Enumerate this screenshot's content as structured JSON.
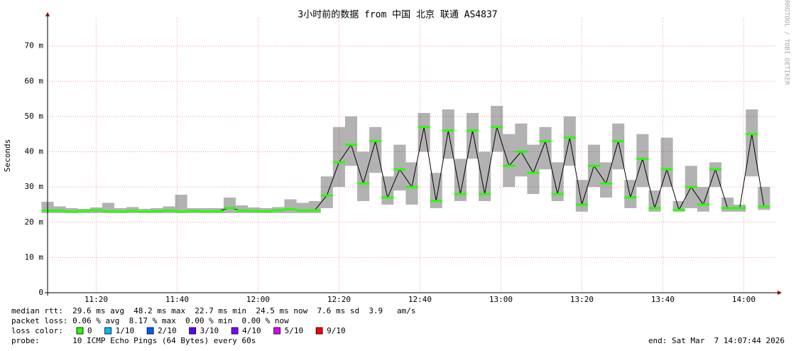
{
  "chart_data": {
    "type": "smoke",
    "title": "3小时前的数据 from 中国 北京 联通 AS4837",
    "y_label": "Seconds",
    "watermark": "RRDTOOL / TOBI OETIKER",
    "ylim": [
      0,
      0.078
    ],
    "yticks": [
      0,
      {
        "value": 0.01,
        "label": "10 m"
      },
      {
        "value": 0.02,
        "label": "20 m"
      },
      {
        "value": 0.03,
        "label": "30 m"
      },
      {
        "value": 0.04,
        "label": "40 m"
      },
      {
        "value": 0.05,
        "label": "50 m"
      },
      {
        "value": 0.06,
        "label": "60 m"
      },
      {
        "value": 0.07,
        "label": "70 m"
      }
    ],
    "xlim": [
      "11:08",
      "14:08"
    ],
    "xticks": [
      "11:20",
      "11:40",
      "12:00",
      "12:20",
      "12:40",
      "13:00",
      "13:20",
      "13:40",
      "14:00"
    ],
    "grid": true,
    "color": "#26ff00",
    "x": [
      "11:08",
      "11:11",
      "11:14",
      "11:17",
      "11:20",
      "11:23",
      "11:26",
      "11:29",
      "11:32",
      "11:35",
      "11:38",
      "11:41",
      "11:44",
      "11:47",
      "11:50",
      "11:53",
      "11:56",
      "11:59",
      "12:02",
      "12:05",
      "12:08",
      "12:11",
      "12:14",
      "12:17",
      "12:20",
      "12:23",
      "12:26",
      "12:29",
      "12:32",
      "12:35",
      "12:38",
      "12:41",
      "12:44",
      "12:47",
      "12:50",
      "12:53",
      "12:56",
      "12:59",
      "13:02",
      "13:05",
      "13:08",
      "13:11",
      "13:14",
      "13:17",
      "13:20",
      "13:23",
      "13:26",
      "13:29",
      "13:32",
      "13:35",
      "13:38",
      "13:41",
      "13:44",
      "13:47",
      "13:50",
      "13:53",
      "13:56",
      "13:59",
      "14:02",
      "14:05"
    ],
    "median": [
      0.0233,
      0.0233,
      0.023,
      0.0232,
      0.0234,
      0.0231,
      0.023,
      0.0232,
      0.023,
      0.0231,
      0.0233,
      0.023,
      0.0232,
      0.023,
      0.0231,
      0.024,
      0.0233,
      0.0232,
      0.0231,
      0.0234,
      0.0237,
      0.0233,
      0.0234,
      0.0276,
      0.037,
      0.042,
      0.031,
      0.043,
      0.027,
      0.035,
      0.03,
      0.047,
      0.026,
      0.046,
      0.028,
      0.046,
      0.028,
      0.047,
      0.036,
      0.04,
      0.034,
      0.043,
      0.028,
      0.044,
      0.025,
      0.036,
      0.031,
      0.043,
      0.027,
      0.038,
      0.024,
      0.035,
      0.0235,
      0.03,
      0.025,
      0.035,
      0.024,
      0.024,
      0.045,
      0.0245
    ],
    "low": [
      0.0226,
      0.0226,
      0.0226,
      0.0226,
      0.0226,
      0.0226,
      0.0226,
      0.0226,
      0.0226,
      0.0226,
      0.0226,
      0.0226,
      0.0226,
      0.0226,
      0.0226,
      0.0226,
      0.0226,
      0.0226,
      0.0226,
      0.0226,
      0.0226,
      0.0226,
      0.0226,
      0.024,
      0.03,
      0.036,
      0.026,
      0.034,
      0.025,
      0.029,
      0.025,
      0.04,
      0.024,
      0.038,
      0.026,
      0.038,
      0.026,
      0.04,
      0.03,
      0.033,
      0.028,
      0.035,
      0.026,
      0.036,
      0.023,
      0.03,
      0.027,
      0.035,
      0.024,
      0.03,
      0.023,
      0.03,
      0.023,
      0.024,
      0.023,
      0.03,
      0.023,
      0.023,
      0.033,
      0.0235
    ],
    "high": [
      0.0258,
      0.0245,
      0.024,
      0.0238,
      0.0242,
      0.0255,
      0.024,
      0.0243,
      0.0238,
      0.024,
      0.0245,
      0.0278,
      0.024,
      0.024,
      0.024,
      0.027,
      0.0248,
      0.0242,
      0.024,
      0.0243,
      0.0265,
      0.0255,
      0.026,
      0.033,
      0.047,
      0.05,
      0.04,
      0.047,
      0.033,
      0.042,
      0.037,
      0.051,
      0.034,
      0.052,
      0.038,
      0.051,
      0.04,
      0.053,
      0.045,
      0.048,
      0.042,
      0.047,
      0.037,
      0.05,
      0.032,
      0.042,
      0.037,
      0.048,
      0.032,
      0.045,
      0.029,
      0.044,
      0.026,
      0.036,
      0.03,
      0.037,
      0.027,
      0.025,
      0.052,
      0.03
    ],
    "stats": [
      "median rtt:  29.6 ms avg  48.2 ms max  22.7 ms min  24.5 ms now  7.6 ms sd  3.9   am/s",
      "packet loss: 0.06 % avg  8.17 % max  0.00 % min  0.00 % now"
    ],
    "loss_label": "loss color:",
    "loss_colors": [
      {
        "name": "0",
        "color": "#26ff00"
      },
      {
        "name": "1/10",
        "color": "#00b8ff"
      },
      {
        "name": "2/10",
        "color": "#0059ff"
      },
      {
        "name": "3/10",
        "color": "#5e00ff"
      },
      {
        "name": "4/10",
        "color": "#7e00ff"
      },
      {
        "name": "5/10",
        "color": "#dd00ff"
      },
      {
        "name": "9/10",
        "color": "#ff0000"
      }
    ],
    "probe": "probe:       10 ICMP Echo Pings (64 Bytes) every 60s",
    "end": "end: Sat Mar  7 14:07:44 2026"
  }
}
